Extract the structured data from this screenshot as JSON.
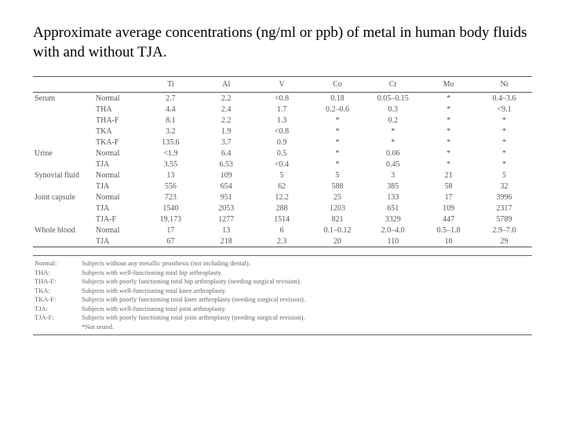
{
  "title": "Approximate average concentrations (ng/ml or ppb) of metal in human body fluids with and without TJA.",
  "columns": [
    "",
    "",
    "Ti",
    "Al",
    "V",
    "Co",
    "Cr",
    "Mo",
    "Ni"
  ],
  "groups": [
    {
      "label": "Serum",
      "rows": [
        {
          "sub": "Normal",
          "v": [
            "2.7",
            "2.2",
            "<0.8",
            "0.18",
            "0.05–0.15",
            "*",
            "0.4–3.6"
          ]
        },
        {
          "sub": "THA",
          "v": [
            "4.4",
            "2.4",
            "1.7",
            "0.2–0.6",
            "0.3",
            "*",
            "<9.1"
          ]
        },
        {
          "sub": "THA-F",
          "v": [
            "8.1",
            "2.2",
            "1.3",
            "*",
            "0.2",
            "*",
            "*"
          ]
        },
        {
          "sub": "TKA",
          "v": [
            "3.2",
            "1.9",
            "<0.8",
            "*",
            "*",
            "*",
            "*"
          ]
        },
        {
          "sub": "TKA-F",
          "v": [
            "135.6",
            "3.7",
            "0.9",
            "*",
            "*",
            "*",
            "*"
          ]
        }
      ]
    },
    {
      "label": "Urine",
      "rows": [
        {
          "sub": "Normal",
          "v": [
            "<1.9",
            "6.4",
            "0.5",
            "*",
            "0.06",
            "*",
            "*"
          ]
        },
        {
          "sub": "TJA",
          "v": [
            "3.55",
            "6.53",
            "<0.4",
            "*",
            "0.45",
            "*",
            "*"
          ]
        }
      ]
    },
    {
      "label": "Synovial fluid",
      "rows": [
        {
          "sub": "Normal",
          "v": [
            "13",
            "109",
            "5",
            "5",
            "3",
            "21",
            "5"
          ]
        },
        {
          "sub": "TJA",
          "v": [
            "556",
            "654",
            "62",
            "588",
            "385",
            "58",
            "32"
          ]
        }
      ]
    },
    {
      "label": "Joint capsule",
      "rows": [
        {
          "sub": "Normal",
          "v": [
            "723",
            "951",
            "12.2",
            "25",
            "133",
            "17",
            "3996"
          ]
        },
        {
          "sub": "TJA",
          "v": [
            "1540",
            "2053",
            "288",
            "1203",
            "651",
            "109",
            "2317"
          ]
        },
        {
          "sub": "TJA-F",
          "v": [
            "19,173",
            "1277",
            "1514",
            "821",
            "3329",
            "447",
            "5789"
          ]
        }
      ]
    },
    {
      "label": "Whole blood",
      "rows": [
        {
          "sub": "Normal",
          "v": [
            "17",
            "13",
            "6",
            "0.1–0.12",
            "2.0–4.0",
            "0.5–1.8",
            "2.9–7.0"
          ]
        },
        {
          "sub": "TJA",
          "v": [
            "67",
            "218",
            "2.3",
            "20",
            "110",
            "10",
            "29"
          ]
        }
      ]
    }
  ],
  "legend": [
    {
      "k": "Normal:",
      "t": "Subjects without any metallic prosthesis (not including dental)."
    },
    {
      "k": "THA:",
      "t": "Subjects with well-functioning total hip arthroplasty."
    },
    {
      "k": "THA-F:",
      "t": "Subjects with poorly functioning total hip arthroplasty (needing surgical revision)."
    },
    {
      "k": "TKA:",
      "t": "Subjects with well-functioning total knee arthroplasty."
    },
    {
      "k": "TKA-F:",
      "t": "Subjects with poorly functioning total knee arthroplasty (needing surgical revision)."
    },
    {
      "k": "TJA:",
      "t": "Subjects with well-functioning total joint arthroplasty."
    },
    {
      "k": "TJA-F:",
      "t": "Subjects with poorly functioning total joint arthroplasty (needing surgical revision)."
    },
    {
      "k": "",
      "t": "*Not tested."
    }
  ],
  "style": {
    "title_fontsize": 19,
    "table_fontsize": 10,
    "legend_fontsize": 8.5,
    "text_color": "#555555",
    "rule_color": "#555555",
    "background": "#ffffff",
    "font_family": "Times New Roman"
  }
}
